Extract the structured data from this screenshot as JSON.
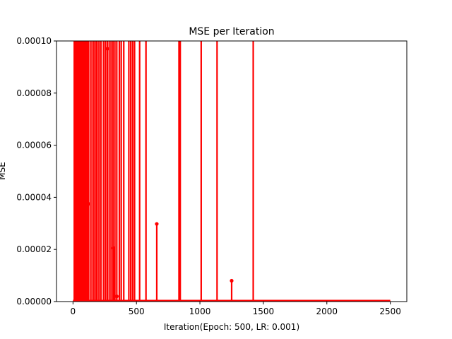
{
  "chart_data": {
    "type": "line",
    "title": "MSE per Iteration",
    "xlabel": "Iteration(Epoch: 500, LR: 0.001)",
    "ylabel": "MSE",
    "xlim": [
      -130,
      2630
    ],
    "ylim": [
      0,
      0.0001
    ],
    "x_ticks": [
      0,
      500,
      1000,
      1500,
      2000,
      2500
    ],
    "y_ticks": [
      0,
      2e-05,
      4e-05,
      6e-05,
      8e-05,
      0.0001
    ],
    "x_tick_labels": [
      "0",
      "500",
      "1000",
      "1500",
      "2000",
      "2500"
    ],
    "y_tick_labels": [
      "0.00000",
      "0.00002",
      "0.00004",
      "0.00006",
      "0.00008",
      "0.00010"
    ],
    "grid": false,
    "series": [
      {
        "color": "#ff0000",
        "marker": "dot",
        "spikes_above_range": [
          10,
          15,
          22,
          30,
          38,
          45,
          55,
          62,
          70,
          82,
          90,
          100,
          110,
          120,
          135,
          150,
          165,
          180,
          190,
          205,
          220,
          240,
          255,
          270,
          285,
          300,
          315,
          330,
          345,
          365,
          380,
          400,
          440,
          455,
          470,
          485,
          525,
          575,
          835,
          845,
          1010,
          1135,
          1420
        ],
        "visible_peaks": [
          {
            "x": 120,
            "y": 3.75e-05
          },
          {
            "x": 270,
            "y": 9.7e-05
          },
          {
            "x": 320,
            "y": 2.05e-05
          },
          {
            "x": 345,
            "y": 2e-06
          },
          {
            "x": 660,
            "y": 2.98e-05
          },
          {
            "x": 1250,
            "y": 8e-06
          }
        ],
        "baseline": 0
      }
    ]
  }
}
